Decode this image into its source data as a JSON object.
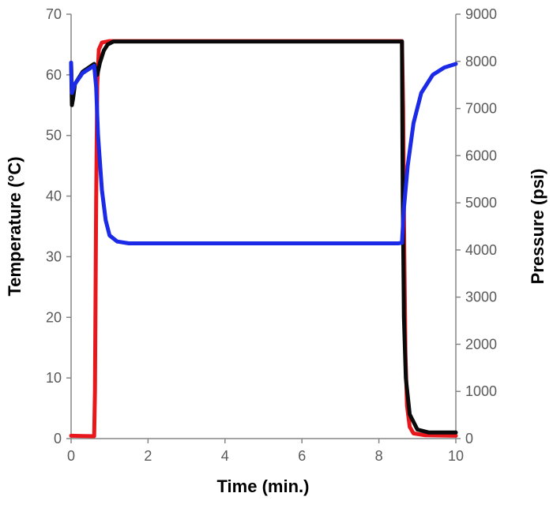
{
  "chart_data": {
    "type": "line",
    "title": "",
    "xlabel": "Time (min.)",
    "ylabel_left": "Temperature (°C)",
    "ylabel_right": "Pressure (psi)",
    "xlim": [
      0,
      10
    ],
    "ylim_left": [
      0,
      70
    ],
    "ylim_right": [
      0,
      9000
    ],
    "x_ticks": [
      "0",
      "2",
      "4",
      "6",
      "8",
      "10"
    ],
    "y_left_ticks": [
      "0",
      "10",
      "20",
      "30",
      "40",
      "50",
      "60",
      "70"
    ],
    "y_right_ticks": [
      "0",
      "1000",
      "2000",
      "3000",
      "4000",
      "5000",
      "6000",
      "7000",
      "8000",
      "9000"
    ],
    "grid": false,
    "legend": "none",
    "series": [
      {
        "axis": "right",
        "color": "#e8171c",
        "points": [
          [
            0,
            60
          ],
          [
            0.3,
            55
          ],
          [
            0.6,
            50
          ],
          [
            0.62,
            1000
          ],
          [
            0.65,
            5000
          ],
          [
            0.68,
            7500
          ],
          [
            0.72,
            8250
          ],
          [
            0.8,
            8400
          ],
          [
            1.0,
            8430
          ],
          [
            2,
            8430
          ],
          [
            4,
            8430
          ],
          [
            6,
            8430
          ],
          [
            8,
            8430
          ],
          [
            8.6,
            8430
          ],
          [
            8.63,
            7000
          ],
          [
            8.66,
            4000
          ],
          [
            8.69,
            1800
          ],
          [
            8.73,
            700
          ],
          [
            8.8,
            250
          ],
          [
            8.9,
            110
          ],
          [
            9.2,
            70
          ],
          [
            10,
            60
          ]
        ]
      },
      {
        "axis": "left",
        "color": "#0a0a0a",
        "points": [
          [
            0,
            62
          ],
          [
            0.02,
            55
          ],
          [
            0.05,
            56
          ],
          [
            0.1,
            58.5
          ],
          [
            0.3,
            60.5
          ],
          [
            0.6,
            61.8
          ],
          [
            0.68,
            60
          ],
          [
            0.75,
            62
          ],
          [
            0.85,
            64
          ],
          [
            0.95,
            65
          ],
          [
            1.1,
            65.5
          ],
          [
            2,
            65.5
          ],
          [
            4,
            65.5
          ],
          [
            6,
            65.5
          ],
          [
            8,
            65.5
          ],
          [
            8.6,
            65.5
          ],
          [
            8.62,
            40
          ],
          [
            8.65,
            20
          ],
          [
            8.7,
            10
          ],
          [
            8.8,
            4
          ],
          [
            9,
            1.5
          ],
          [
            9.3,
            1
          ],
          [
            10,
            1
          ]
        ]
      },
      {
        "axis": "left",
        "color": "#1a2ae6",
        "points": [
          [
            0,
            62
          ],
          [
            0.02,
            57
          ],
          [
            0.1,
            58.5
          ],
          [
            0.3,
            60.3
          ],
          [
            0.6,
            61.5
          ],
          [
            0.65,
            58
          ],
          [
            0.7,
            50
          ],
          [
            0.8,
            41
          ],
          [
            0.9,
            36
          ],
          [
            1.0,
            33.5
          ],
          [
            1.2,
            32.5
          ],
          [
            1.5,
            32.2
          ],
          [
            2,
            32.2
          ],
          [
            4,
            32.2
          ],
          [
            6,
            32.2
          ],
          [
            8,
            32.2
          ],
          [
            8.5,
            32.2
          ],
          [
            8.6,
            32.3
          ],
          [
            8.65,
            38
          ],
          [
            8.75,
            45
          ],
          [
            8.9,
            52
          ],
          [
            9.1,
            57
          ],
          [
            9.4,
            60
          ],
          [
            9.7,
            61.2
          ],
          [
            10,
            61.8
          ]
        ]
      }
    ]
  }
}
